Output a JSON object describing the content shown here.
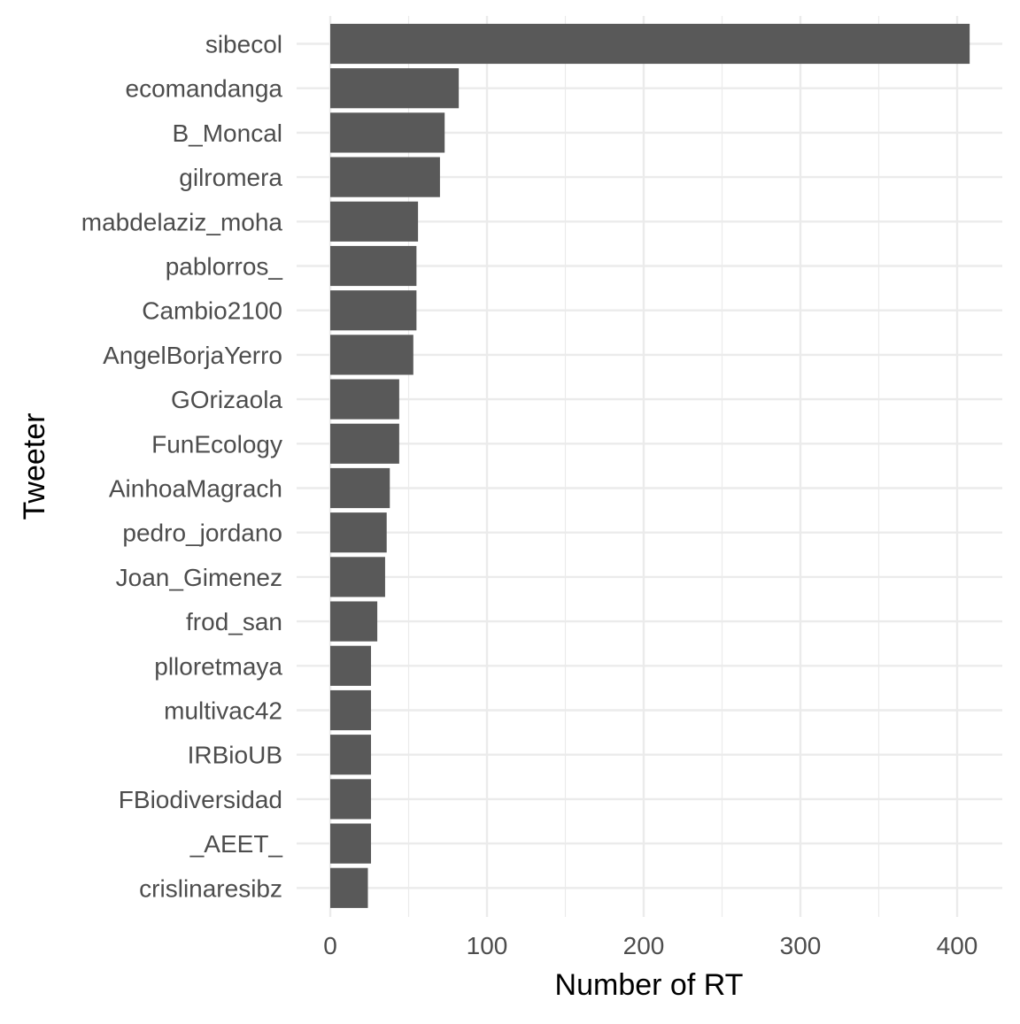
{
  "chart_data": {
    "type": "bar",
    "orientation": "horizontal",
    "xlabel": "Number of RT",
    "ylabel": "Tweeter",
    "xlim": [
      0,
      428
    ],
    "x_ticks": [
      0,
      100,
      200,
      300,
      400
    ],
    "grid": true,
    "bar_color": "#595959",
    "grid_color": "#ebebeb",
    "categories": [
      "sibecol",
      "ecomandanga",
      "B_Moncal",
      "gilromera",
      "mabdelaziz_moha",
      "pablorros_",
      "Cambio2100",
      "AngelBorjaYerro",
      "GOrizaola",
      "FunEcology",
      "AinhoaMagrach",
      "pedro_jordano",
      "Joan_Gimenez",
      "frod_san",
      "plloretmaya",
      "multivac42",
      "IRBioUB",
      "FBiodiversidad",
      "_AEET_",
      "crislinaresibz"
    ],
    "values": [
      408,
      82,
      73,
      70,
      56,
      55,
      55,
      53,
      44,
      44,
      38,
      36,
      35,
      30,
      26,
      26,
      26,
      26,
      26,
      24
    ]
  }
}
